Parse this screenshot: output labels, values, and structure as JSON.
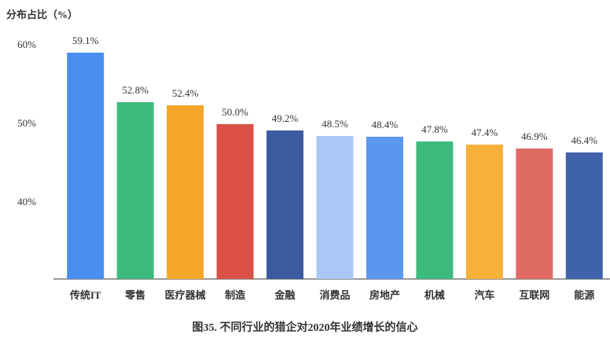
{
  "chart_data": {
    "type": "bar",
    "title": "图35. 不同行业的猎企对2020年业绩增长的信心",
    "y_label": "分布占比（%）",
    "categories": [
      "传统IT",
      "零售",
      "医疗器械",
      "制造",
      "金融",
      "消费品",
      "房地产",
      "机械",
      "汽车",
      "互联网",
      "能源"
    ],
    "values": [
      59.1,
      52.8,
      52.4,
      50.0,
      49.2,
      48.5,
      48.4,
      47.8,
      47.4,
      46.9,
      46.4
    ],
    "value_labels": [
      "59.1%",
      "52.8%",
      "52.4%",
      "50.0%",
      "49.2%",
      "48.5%",
      "48.4%",
      "47.8%",
      "47.4%",
      "46.9%",
      "46.4%"
    ],
    "colors": [
      "#4a8ef0",
      "#3dbb7c",
      "#f4a62a",
      "#dc5147",
      "#3c5aa0",
      "#a9c8f5",
      "#5b97ee",
      "#3dbb7c",
      "#f6b13a",
      "#e06a64",
      "#3f62a8"
    ],
    "ylim": [
      30.3,
      63
    ],
    "yticks": [
      {
        "value": 40,
        "label": "40%"
      },
      {
        "value": 50,
        "label": "50%"
      },
      {
        "value": 60,
        "label": "60%"
      }
    ],
    "grid": false
  }
}
